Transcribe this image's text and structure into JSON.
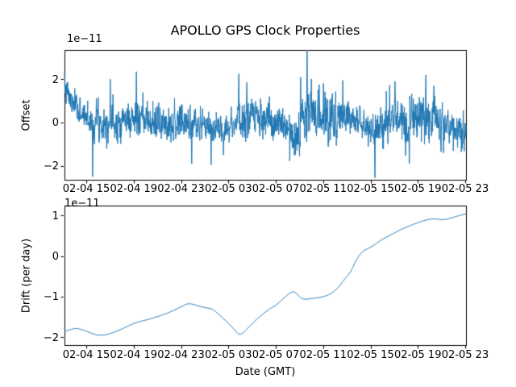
{
  "figure": {
    "background_color": "#ffffff",
    "line_color": "#1f77b4",
    "axis_color": "#000000"
  },
  "chart_data": [
    {
      "type": "line",
      "title": "APOLLO GPS Clock Properties",
      "ylabel": "Offset",
      "xlabel": "",
      "y_offset_text": "1e−11",
      "x_ticklabels": [
        "02-04 15",
        "02-04 19",
        "02-04 23",
        "02-05 03",
        "02-05 07",
        "02-05 11",
        "02-05 15",
        "02-05 19",
        "02-05 23"
      ],
      "y_ticks": [
        2,
        0,
        -2
      ],
      "y_ticklabels": [
        "2",
        "0",
        "−2"
      ],
      "ylim": [
        -2.64,
        3.35
      ],
      "legend": "off",
      "grid": "off",
      "line_color": "#1f77b4",
      "series": [
        {
          "name": "offset",
          "style": "noisy",
          "n_points": 1800,
          "seed": 7,
          "ar_coeff": 0.35,
          "sigma_base": 0.4,
          "sigma_zones": [
            [
              0.0,
              0.05,
              0.28
            ],
            [
              0.33,
              0.43,
              0.3
            ],
            [
              0.55,
              0.68,
              0.5
            ],
            [
              0.84,
              0.95,
              0.48
            ]
          ],
          "mean_envelope": [
            [
              0.0,
              1.6
            ],
            [
              0.008,
              1.3
            ],
            [
              0.018,
              0.95
            ],
            [
              0.03,
              0.65
            ],
            [
              0.045,
              0.4
            ],
            [
              0.065,
              0.15
            ],
            [
              0.1,
              0.05
            ],
            [
              0.14,
              0.12
            ],
            [
              0.18,
              0.1
            ],
            [
              0.22,
              0.0
            ],
            [
              0.26,
              0.05
            ],
            [
              0.3,
              -0.05
            ],
            [
              0.34,
              -0.1
            ],
            [
              0.385,
              -0.35
            ],
            [
              0.42,
              -0.05
            ],
            [
              0.46,
              0.15
            ],
            [
              0.5,
              0.05
            ],
            [
              0.54,
              -0.05
            ],
            [
              0.567,
              -0.35
            ],
            [
              0.585,
              -0.55
            ],
            [
              0.598,
              0.1
            ],
            [
              0.615,
              0.4
            ],
            [
              0.635,
              0.5
            ],
            [
              0.655,
              0.25
            ],
            [
              0.675,
              0.1
            ],
            [
              0.7,
              0.4
            ],
            [
              0.725,
              0.1
            ],
            [
              0.75,
              -0.1
            ],
            [
              0.775,
              -0.3
            ],
            [
              0.8,
              0.05
            ],
            [
              0.825,
              0.15
            ],
            [
              0.85,
              -0.15
            ],
            [
              0.875,
              0.2
            ],
            [
              0.89,
              0.45
            ],
            [
              0.91,
              0.25
            ],
            [
              0.935,
              0.05
            ],
            [
              0.96,
              -0.1
            ],
            [
              0.98,
              -0.25
            ],
            [
              1.0,
              -0.4
            ]
          ],
          "spikes": [
            [
              0.07,
              -2.5
            ],
            [
              0.114,
              2.0
            ],
            [
              0.179,
              2.35
            ],
            [
              0.317,
              -1.9
            ],
            [
              0.365,
              -1.95
            ],
            [
              0.434,
              2.25
            ],
            [
              0.454,
              1.85
            ],
            [
              0.588,
              2.1
            ],
            [
              0.604,
              3.35
            ],
            [
              0.693,
              1.95
            ],
            [
              0.773,
              -2.55
            ],
            [
              0.823,
              1.9
            ],
            [
              0.859,
              -1.9
            ],
            [
              0.9,
              2.2
            ],
            [
              0.92,
              1.7
            ],
            [
              0.938,
              -1.35
            ]
          ]
        }
      ]
    },
    {
      "type": "line",
      "title": "",
      "ylabel": "Drift (per day)",
      "xlabel": "Date (GMT)",
      "y_offset_text": "1e−11",
      "x_ticklabels": [
        "02-04 15",
        "02-04 19",
        "02-04 23",
        "02-05 03",
        "02-05 07",
        "02-05 11",
        "02-05 15",
        "02-05 19",
        "02-05 23"
      ],
      "y_ticks": [
        1,
        0,
        -1,
        -2
      ],
      "y_ticklabels": [
        "1",
        "0",
        "−1",
        "−2"
      ],
      "ylim": [
        -2.2,
        1.24
      ],
      "legend": "off",
      "grid": "off",
      "line_color": "#1f77b4",
      "series": [
        {
          "name": "drift",
          "style": "smooth",
          "points": [
            [
              0.0,
              -1.86
            ],
            [
              0.02,
              -1.8
            ],
            [
              0.03,
              -1.78
            ],
            [
              0.05,
              -1.83
            ],
            [
              0.076,
              -1.95
            ],
            [
              0.1,
              -1.96
            ],
            [
              0.13,
              -1.86
            ],
            [
              0.16,
              -1.72
            ],
            [
              0.18,
              -1.63
            ],
            [
              0.2,
              -1.59
            ],
            [
              0.241,
              -1.47
            ],
            [
              0.271,
              -1.35
            ],
            [
              0.297,
              -1.22
            ],
            [
              0.307,
              -1.17
            ],
            [
              0.321,
              -1.19
            ],
            [
              0.341,
              -1.26
            ],
            [
              0.367,
              -1.29
            ],
            [
              0.382,
              -1.42
            ],
            [
              0.402,
              -1.6
            ],
            [
              0.422,
              -1.8
            ],
            [
              0.436,
              -1.97
            ],
            [
              0.452,
              -1.83
            ],
            [
              0.472,
              -1.62
            ],
            [
              0.488,
              -1.48
            ],
            [
              0.508,
              -1.32
            ],
            [
              0.528,
              -1.21
            ],
            [
              0.548,
              -1.02
            ],
            [
              0.568,
              -0.86
            ],
            [
              0.578,
              -0.92
            ],
            [
              0.592,
              -1.08
            ],
            [
              0.617,
              -1.05
            ],
            [
              0.649,
              -1.0
            ],
            [
              0.663,
              -0.93
            ],
            [
              0.679,
              -0.82
            ],
            [
              0.699,
              -0.55
            ],
            [
              0.713,
              -0.4
            ],
            [
              0.723,
              -0.16
            ],
            [
              0.733,
              0.0
            ],
            [
              0.743,
              0.12
            ],
            [
              0.753,
              0.17
            ],
            [
              0.769,
              0.25
            ],
            [
              0.789,
              0.4
            ],
            [
              0.809,
              0.5
            ],
            [
              0.829,
              0.61
            ],
            [
              0.849,
              0.7
            ],
            [
              0.869,
              0.78
            ],
            [
              0.89,
              0.86
            ],
            [
              0.918,
              0.93
            ],
            [
              0.944,
              0.88
            ],
            [
              0.964,
              0.94
            ],
            [
              0.984,
              1.0
            ],
            [
              1.0,
              1.04
            ]
          ]
        }
      ]
    }
  ]
}
